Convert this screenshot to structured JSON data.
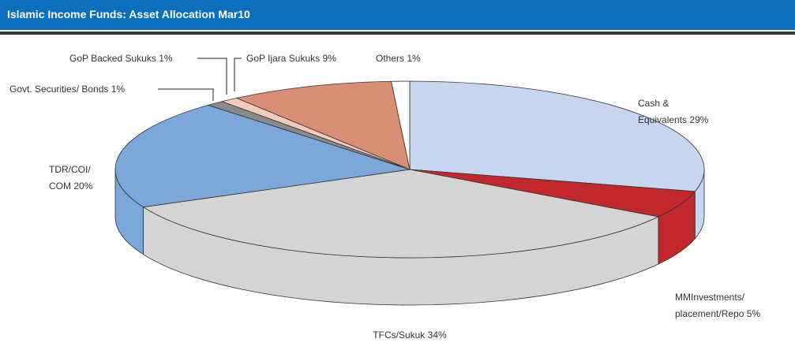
{
  "chart_data": {
    "type": "pie",
    "title": "Islamic Income Funds: Asset Allocation Mar10",
    "categories": [
      "Cash &\nEquivalents",
      "MMInvestments/\nplacement/Repo",
      "TFCs/Sukuk",
      "TDR/COI/\nCOM",
      "Govt. Securities/ Bonds",
      "GoP Backed Sukuks",
      "GoP Ijara Sukuks",
      "Others"
    ],
    "values": [
      29,
      5,
      34,
      20,
      1,
      1,
      9,
      1
    ],
    "value_labels": [
      "29%",
      "5%",
      "34%",
      "20%",
      "1%",
      "1%",
      "9%",
      "1%"
    ],
    "colors": [
      "#c6d6ef",
      "#c1272d",
      "#d4d4d4",
      "#7ba7d9",
      "#8a8a8a",
      "#f3cabb",
      "#d98f75",
      "#ffffff"
    ]
  }
}
